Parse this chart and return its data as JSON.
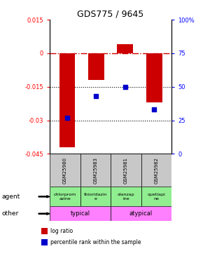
{
  "title": "GDS775 / 9645",
  "samples": [
    "GSM25980",
    "GSM25983",
    "GSM25981",
    "GSM25982"
  ],
  "log_ratios": [
    -0.042,
    -0.012,
    0.004,
    -0.022
  ],
  "percentile_ranks": [
    27,
    43,
    50,
    33
  ],
  "ylim_left": [
    -0.045,
    0.015
  ],
  "ylim_right": [
    0,
    100
  ],
  "yticks_left": [
    0.015,
    0,
    -0.015,
    -0.03,
    -0.045
  ],
  "yticks_right": [
    100,
    75,
    50,
    25,
    0
  ],
  "ytick_labels_left": [
    "0.015",
    "0",
    "-0.015",
    "-0.03",
    "-0.045"
  ],
  "ytick_labels_right": [
    "100%",
    "75",
    "50",
    "25",
    "0"
  ],
  "agent_labels": [
    "chlorprom\nazine",
    "thioridazin\ne",
    "olanzap\nine",
    "quetiapi\nne"
  ],
  "other_color": "#FF80FF",
  "bar_color": "#CC0000",
  "dot_color": "#0000CC",
  "background_color": "#ffffff",
  "table_bg": "#C8C8C8",
  "agent_bg": "#90EE90"
}
